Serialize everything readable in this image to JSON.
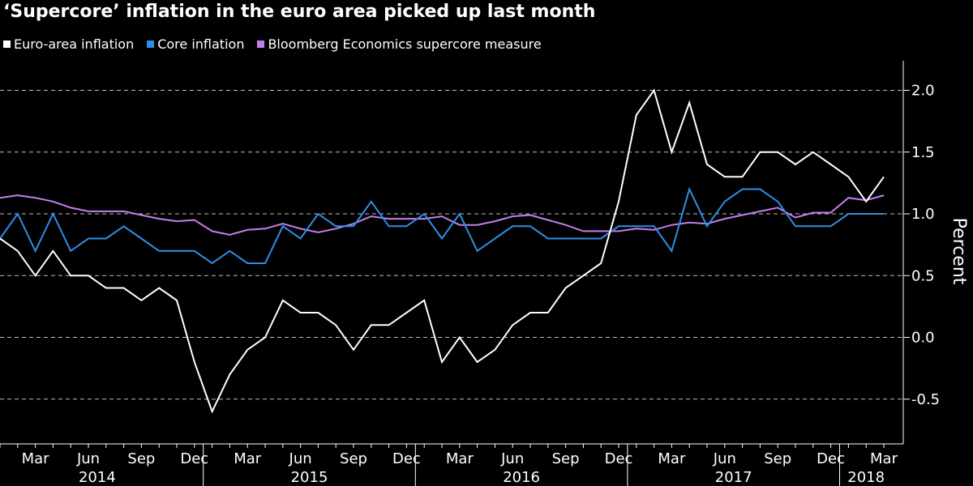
{
  "chart_data": {
    "type": "line",
    "title": "‘Supercore’ inflation in the euro area picked up last month",
    "ylabel": "Percent",
    "ylim": [
      -0.75,
      2.25
    ],
    "yticks": [
      "2.0",
      "1.5",
      "1.0",
      "0.5",
      "0.0",
      "-0.5"
    ],
    "ytick_values": [
      2.0,
      1.5,
      1.0,
      0.5,
      0.0,
      -0.5
    ],
    "x_months": [
      "Jan 2014",
      "Feb 2014",
      "Mar 2014",
      "Apr 2014",
      "May 2014",
      "Jun 2014",
      "Jul 2014",
      "Aug 2014",
      "Sep 2014",
      "Oct 2014",
      "Nov 2014",
      "Dec 2014",
      "Jan 2015",
      "Feb 2015",
      "Mar 2015",
      "Apr 2015",
      "May 2015",
      "Jun 2015",
      "Jul 2015",
      "Aug 2015",
      "Sep 2015",
      "Oct 2015",
      "Nov 2015",
      "Dec 2015",
      "Jan 2016",
      "Feb 2016",
      "Mar 2016",
      "Apr 2016",
      "May 2016",
      "Jun 2016",
      "Jul 2016",
      "Aug 2016",
      "Sep 2016",
      "Oct 2016",
      "Nov 2016",
      "Dec 2016",
      "Jan 2017",
      "Feb 2017",
      "Mar 2017",
      "Apr 2017",
      "May 2017",
      "Jun 2017",
      "Jul 2017",
      "Aug 2017",
      "Sep 2017",
      "Oct 2017",
      "Nov 2017",
      "Dec 2017",
      "Jan 2018",
      "Feb 2018",
      "Mar 2018"
    ],
    "xtick_labels": [
      {
        "label": "Mar",
        "index": 2
      },
      {
        "label": "Jun",
        "index": 5
      },
      {
        "label": "Sep",
        "index": 8
      },
      {
        "label": "Dec",
        "index": 11
      },
      {
        "label": "Mar",
        "index": 14
      },
      {
        "label": "Jun",
        "index": 17
      },
      {
        "label": "Sep",
        "index": 20
      },
      {
        "label": "Dec",
        "index": 23
      },
      {
        "label": "Mar",
        "index": 26
      },
      {
        "label": "Jun",
        "index": 29
      },
      {
        "label": "Sep",
        "index": 32
      },
      {
        "label": "Dec",
        "index": 35
      },
      {
        "label": "Mar",
        "index": 38
      },
      {
        "label": "Jun",
        "index": 41
      },
      {
        "label": "Sep",
        "index": 44
      },
      {
        "label": "Dec",
        "index": 47
      },
      {
        "label": "Mar",
        "index": 50
      }
    ],
    "year_labels": [
      {
        "label": "2014",
        "start": 0,
        "end": 11
      },
      {
        "label": "2015",
        "start": 12,
        "end": 23
      },
      {
        "label": "2016",
        "start": 24,
        "end": 35
      },
      {
        "label": "2017",
        "start": 36,
        "end": 47
      },
      {
        "label": "2018",
        "start": 48,
        "end": 50
      }
    ],
    "grid": "horizontal dashed",
    "legend_position": "top-left",
    "series": [
      {
        "name": "Euro-area inflation",
        "color": "#ffffff",
        "values": [
          0.8,
          0.7,
          0.5,
          0.7,
          0.5,
          0.5,
          0.4,
          0.4,
          0.3,
          0.4,
          0.3,
          -0.2,
          -0.6,
          -0.3,
          -0.1,
          0.0,
          0.3,
          0.2,
          0.2,
          0.1,
          -0.1,
          0.1,
          0.1,
          0.2,
          0.3,
          -0.2,
          0.0,
          -0.2,
          -0.1,
          0.1,
          0.2,
          0.2,
          0.4,
          0.5,
          0.6,
          1.1,
          1.8,
          2.0,
          1.5,
          1.9,
          1.4,
          1.3,
          1.3,
          1.5,
          1.5,
          1.4,
          1.5,
          1.4,
          1.3,
          1.1,
          1.3
        ]
      },
      {
        "name": "Core inflation",
        "color": "#2e8fe6",
        "values": [
          0.8,
          1.0,
          0.7,
          1.0,
          0.7,
          0.8,
          0.8,
          0.9,
          0.8,
          0.7,
          0.7,
          0.7,
          0.6,
          0.7,
          0.6,
          0.6,
          0.9,
          0.8,
          1.0,
          0.9,
          0.9,
          1.1,
          0.9,
          0.9,
          1.0,
          0.8,
          1.0,
          0.7,
          0.8,
          0.9,
          0.9,
          0.8,
          0.8,
          0.8,
          0.8,
          0.9,
          0.9,
          0.9,
          0.7,
          1.2,
          0.9,
          1.1,
          1.2,
          1.2,
          1.1,
          0.9,
          0.9,
          0.9,
          1.0,
          1.0,
          1.0
        ]
      },
      {
        "name": "Bloomberg Economics supercore measure",
        "color": "#c77dee",
        "values": [
          1.13,
          1.15,
          1.13,
          1.1,
          1.05,
          1.02,
          1.02,
          1.02,
          0.99,
          0.96,
          0.94,
          0.95,
          0.86,
          0.83,
          0.87,
          0.88,
          0.92,
          0.88,
          0.85,
          0.88,
          0.92,
          0.98,
          0.96,
          0.96,
          0.96,
          0.98,
          0.91,
          0.91,
          0.94,
          0.98,
          0.99,
          0.95,
          0.91,
          0.86,
          0.86,
          0.86,
          0.88,
          0.87,
          0.91,
          0.93,
          0.92,
          0.96,
          0.99,
          1.02,
          1.05,
          0.97,
          1.01,
          1.01,
          1.13,
          1.11,
          1.15
        ]
      }
    ]
  }
}
